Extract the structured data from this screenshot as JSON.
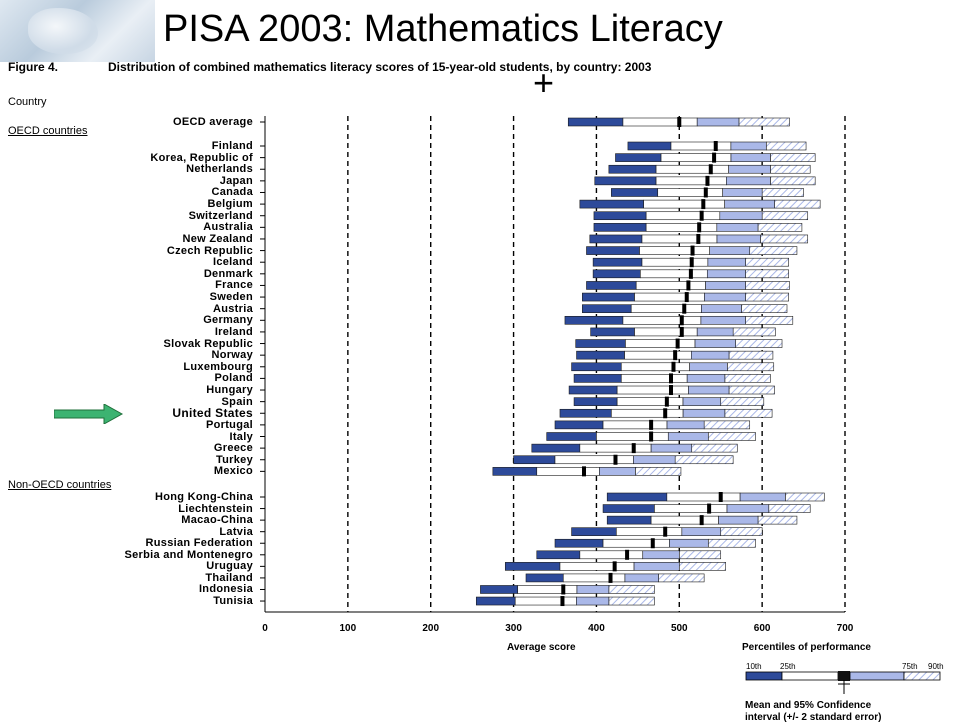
{
  "slide_title": "PISA 2003:  Mathematics Literacy",
  "figure_label": "Figure 4.",
  "figure_caption": "Distribution of combined mathematics literacy scores of 15-year-old students, by country: 2003",
  "country_header": "Country",
  "groups": {
    "oecd_label": "OECD countries",
    "non_oecd_label": "Non-OECD countries"
  },
  "highlight_country": "United States",
  "highlight_arrow_color": "#3cb371",
  "colors": {
    "dark_band": "#2d4a9a",
    "light_band": "#aab8e8",
    "outer_hatch": "#aab8e8",
    "median_marker": "#000000"
  },
  "chart_data": {
    "type": "bar",
    "subtype": "percentile-range",
    "xlabel": "Average score",
    "xlim": [
      0,
      700
    ],
    "xticks": [
      "0",
      "100",
      "200",
      "300",
      "400",
      "500",
      "600",
      "700"
    ],
    "grid": "dashed vertical lines at 100, 200, 300, 400, 500, 600, 700",
    "percentile_keys": [
      "p10",
      "p25",
      "mean",
      "p75",
      "p90"
    ],
    "countries": [
      {
        "name": "OECD average",
        "p10": 366,
        "p25": 432,
        "mean": 500,
        "p75": 572,
        "p90": 633
      },
      {
        "name": "Finland",
        "p10": 438,
        "p25": 490,
        "mean": 544,
        "p75": 605,
        "p90": 653
      },
      {
        "name": "Korea, Republic of",
        "p10": 423,
        "p25": 478,
        "mean": 542,
        "p75": 610,
        "p90": 664
      },
      {
        "name": "Netherlands",
        "p10": 415,
        "p25": 472,
        "mean": 538,
        "p75": 610,
        "p90": 658
      },
      {
        "name": "Japan",
        "p10": 398,
        "p25": 472,
        "mean": 534,
        "p75": 610,
        "p90": 664
      },
      {
        "name": "Canada",
        "p10": 418,
        "p25": 474,
        "mean": 532,
        "p75": 600,
        "p90": 650
      },
      {
        "name": "Belgium",
        "p10": 380,
        "p25": 457,
        "mean": 529,
        "p75": 615,
        "p90": 670
      },
      {
        "name": "Switzerland",
        "p10": 397,
        "p25": 460,
        "mean": 527,
        "p75": 600,
        "p90": 655
      },
      {
        "name": "Australia",
        "p10": 397,
        "p25": 460,
        "mean": 524,
        "p75": 595,
        "p90": 648
      },
      {
        "name": "New Zealand",
        "p10": 392,
        "p25": 455,
        "mean": 523,
        "p75": 598,
        "p90": 655
      },
      {
        "name": "Czech Republic",
        "p10": 388,
        "p25": 452,
        "mean": 516,
        "p75": 585,
        "p90": 642
      },
      {
        "name": "Iceland",
        "p10": 396,
        "p25": 455,
        "mean": 515,
        "p75": 580,
        "p90": 632
      },
      {
        "name": "Denmark",
        "p10": 396,
        "p25": 453,
        "mean": 514,
        "p75": 580,
        "p90": 632
      },
      {
        "name": "France",
        "p10": 388,
        "p25": 448,
        "mean": 511,
        "p75": 580,
        "p90": 633
      },
      {
        "name": "Sweden",
        "p10": 383,
        "p25": 446,
        "mean": 509,
        "p75": 580,
        "p90": 632
      },
      {
        "name": "Austria",
        "p10": 383,
        "p25": 442,
        "mean": 506,
        "p75": 575,
        "p90": 630
      },
      {
        "name": "Germany",
        "p10": 362,
        "p25": 432,
        "mean": 503,
        "p75": 580,
        "p90": 637
      },
      {
        "name": "Ireland",
        "p10": 393,
        "p25": 446,
        "mean": 503,
        "p75": 565,
        "p90": 616
      },
      {
        "name": "Slovak Republic",
        "p10": 375,
        "p25": 435,
        "mean": 498,
        "p75": 568,
        "p90": 624
      },
      {
        "name": "Norway",
        "p10": 376,
        "p25": 434,
        "mean": 495,
        "p75": 560,
        "p90": 613
      },
      {
        "name": "Luxembourg",
        "p10": 370,
        "p25": 430,
        "mean": 493,
        "p75": 558,
        "p90": 614
      },
      {
        "name": "Poland",
        "p10": 373,
        "p25": 430,
        "mean": 490,
        "p75": 555,
        "p90": 610
      },
      {
        "name": "Hungary",
        "p10": 367,
        "p25": 425,
        "mean": 490,
        "p75": 560,
        "p90": 615
      },
      {
        "name": "Spain",
        "p10": 373,
        "p25": 425,
        "mean": 485,
        "p75": 550,
        "p90": 602
      },
      {
        "name": "United States",
        "p10": 356,
        "p25": 418,
        "mean": 483,
        "p75": 555,
        "p90": 612
      },
      {
        "name": "Portugal",
        "p10": 350,
        "p25": 408,
        "mean": 466,
        "p75": 530,
        "p90": 585
      },
      {
        "name": "Italy",
        "p10": 340,
        "p25": 400,
        "mean": 466,
        "p75": 535,
        "p90": 592
      },
      {
        "name": "Greece",
        "p10": 322,
        "p25": 380,
        "mean": 445,
        "p75": 515,
        "p90": 570
      },
      {
        "name": "Turkey",
        "p10": 300,
        "p25": 350,
        "mean": 423,
        "p75": 495,
        "p90": 565
      },
      {
        "name": "Mexico",
        "p10": 275,
        "p25": 328,
        "mean": 385,
        "p75": 447,
        "p90": 502
      },
      {
        "name": "Hong Kong-China",
        "p10": 413,
        "p25": 485,
        "mean": 550,
        "p75": 628,
        "p90": 675
      },
      {
        "name": "Liechtenstein",
        "p10": 408,
        "p25": 470,
        "mean": 536,
        "p75": 608,
        "p90": 658
      },
      {
        "name": "Macao-China",
        "p10": 413,
        "p25": 466,
        "mean": 527,
        "p75": 595,
        "p90": 642
      },
      {
        "name": "Latvia",
        "p10": 370,
        "p25": 424,
        "mean": 483,
        "p75": 550,
        "p90": 600
      },
      {
        "name": "Russian Federation",
        "p10": 350,
        "p25": 408,
        "mean": 468,
        "p75": 535,
        "p90": 592
      },
      {
        "name": "Serbia and Montenegro",
        "p10": 328,
        "p25": 380,
        "mean": 437,
        "p75": 500,
        "p90": 550
      },
      {
        "name": "Uruguay",
        "p10": 290,
        "p25": 356,
        "mean": 422,
        "p75": 500,
        "p90": 556
      },
      {
        "name": "Thailand",
        "p10": 315,
        "p25": 360,
        "mean": 417,
        "p75": 475,
        "p90": 530
      },
      {
        "name": "Indonesia",
        "p10": 260,
        "p25": 305,
        "mean": 360,
        "p75": 415,
        "p90": 470
      },
      {
        "name": "Tunisia",
        "p10": 255,
        "p25": 302,
        "mean": 359,
        "p75": 415,
        "p90": 470
      }
    ],
    "legend": {
      "title": "Percentiles of performance",
      "tick_labels": [
        "10th",
        "25th",
        "75th",
        "90th"
      ],
      "caption_line1": "Mean and 95% Confidence",
      "caption_line2": "interval (+/- 2 standard error)"
    }
  }
}
